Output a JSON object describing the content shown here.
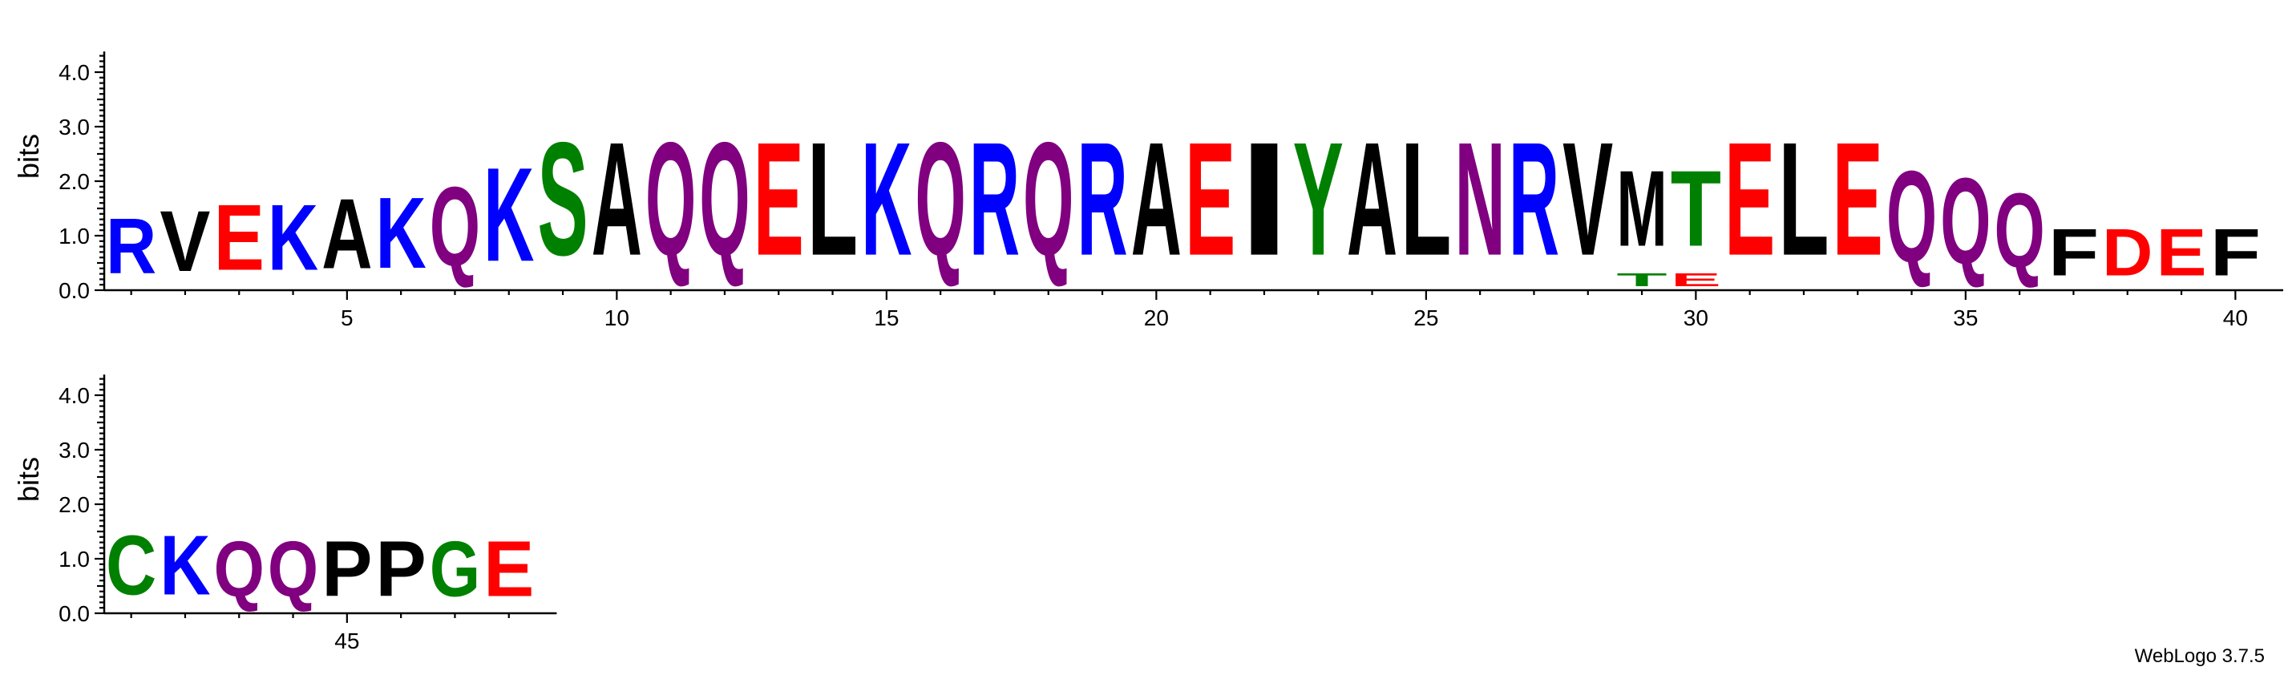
{
  "credit": "WebLogo 3.7.5",
  "colors": {
    "hydrophobic": "#000000",
    "polar": "#008000",
    "basic": "#0000ff",
    "acidic": "#ff0000",
    "amide": "#800080"
  },
  "chart_data": [
    {
      "type": "sequence-logo",
      "ylabel": "bits",
      "ylim": [
        0,
        4.32
      ],
      "yticks": [
        "0.0",
        "1.0",
        "2.0",
        "3.0",
        "4.0"
      ],
      "xlim": [
        0.5,
        40.5
      ],
      "xticks": [
        5,
        10,
        15,
        20,
        25,
        30,
        35,
        40
      ],
      "columns": [
        {
          "pos": 1,
          "stack": [
            {
              "letter": "R",
              "bits": 1.62
            }
          ]
        },
        {
          "pos": 2,
          "stack": [
            {
              "letter": "V",
              "bits": 1.78
            }
          ]
        },
        {
          "pos": 3,
          "stack": [
            {
              "letter": "E",
              "bits": 1.92
            }
          ]
        },
        {
          "pos": 4,
          "stack": [
            {
              "letter": "K",
              "bits": 1.92
            }
          ]
        },
        {
          "pos": 5,
          "stack": [
            {
              "letter": "A",
              "bits": 2.05
            }
          ]
        },
        {
          "pos": 6,
          "stack": [
            {
              "letter": "K",
              "bits": 2.08
            }
          ]
        },
        {
          "pos": 7,
          "stack": [
            {
              "letter": "Q",
              "bits": 2.32
            }
          ]
        },
        {
          "pos": 8,
          "stack": [
            {
              "letter": "K",
              "bits": 2.75
            }
          ]
        },
        {
          "pos": 9,
          "stack": [
            {
              "letter": "S",
              "bits": 3.32
            }
          ]
        },
        {
          "pos": 10,
          "stack": [
            {
              "letter": "A",
              "bits": 3.32
            }
          ]
        },
        {
          "pos": 11,
          "stack": [
            {
              "letter": "Q",
              "bits": 3.32
            }
          ]
        },
        {
          "pos": 12,
          "stack": [
            {
              "letter": "Q",
              "bits": 3.32
            }
          ]
        },
        {
          "pos": 13,
          "stack": [
            {
              "letter": "E",
              "bits": 3.32
            }
          ]
        },
        {
          "pos": 14,
          "stack": [
            {
              "letter": "L",
              "bits": 3.32
            }
          ]
        },
        {
          "pos": 15,
          "stack": [
            {
              "letter": "K",
              "bits": 3.32
            }
          ]
        },
        {
          "pos": 16,
          "stack": [
            {
              "letter": "Q",
              "bits": 3.32
            }
          ]
        },
        {
          "pos": 17,
          "stack": [
            {
              "letter": "R",
              "bits": 3.32
            }
          ]
        },
        {
          "pos": 18,
          "stack": [
            {
              "letter": "Q",
              "bits": 3.32
            }
          ]
        },
        {
          "pos": 19,
          "stack": [
            {
              "letter": "R",
              "bits": 3.32
            }
          ]
        },
        {
          "pos": 20,
          "stack": [
            {
              "letter": "A",
              "bits": 3.32
            }
          ]
        },
        {
          "pos": 21,
          "stack": [
            {
              "letter": "E",
              "bits": 3.32
            }
          ]
        },
        {
          "pos": 22,
          "stack": [
            {
              "letter": "I",
              "bits": 3.32
            }
          ]
        },
        {
          "pos": 23,
          "stack": [
            {
              "letter": "Y",
              "bits": 3.32
            }
          ]
        },
        {
          "pos": 24,
          "stack": [
            {
              "letter": "A",
              "bits": 3.32
            }
          ]
        },
        {
          "pos": 25,
          "stack": [
            {
              "letter": "L",
              "bits": 3.32
            }
          ]
        },
        {
          "pos": 26,
          "stack": [
            {
              "letter": "N",
              "bits": 3.32
            }
          ]
        },
        {
          "pos": 27,
          "stack": [
            {
              "letter": "R",
              "bits": 3.32
            }
          ]
        },
        {
          "pos": 28,
          "stack": [
            {
              "letter": "V",
              "bits": 3.32
            }
          ]
        },
        {
          "pos": 29,
          "stack": [
            {
              "letter": "T",
              "bits": 0.38
            },
            {
              "letter": "M",
              "bits": 2.22
            }
          ]
        },
        {
          "pos": 30,
          "stack": [
            {
              "letter": "E",
              "bits": 0.38
            },
            {
              "letter": "T",
              "bits": 2.22
            }
          ]
        },
        {
          "pos": 31,
          "stack": [
            {
              "letter": "E",
              "bits": 3.32
            }
          ]
        },
        {
          "pos": 32,
          "stack": [
            {
              "letter": "L",
              "bits": 3.32
            }
          ]
        },
        {
          "pos": 33,
          "stack": [
            {
              "letter": "E",
              "bits": 3.32
            }
          ]
        },
        {
          "pos": 34,
          "stack": [
            {
              "letter": "Q",
              "bits": 2.68
            }
          ]
        },
        {
          "pos": 35,
          "stack": [
            {
              "letter": "Q",
              "bits": 2.52
            }
          ]
        },
        {
          "pos": 36,
          "stack": [
            {
              "letter": "Q",
              "bits": 2.18
            }
          ]
        },
        {
          "pos": 37,
          "stack": [
            {
              "letter": "F",
              "bits": 1.38
            }
          ]
        },
        {
          "pos": 38,
          "stack": [
            {
              "letter": "D",
              "bits": 1.38
            }
          ]
        },
        {
          "pos": 39,
          "stack": [
            {
              "letter": "E",
              "bits": 1.38
            }
          ]
        },
        {
          "pos": 40,
          "stack": [
            {
              "letter": "F",
              "bits": 1.38
            }
          ]
        }
      ]
    },
    {
      "type": "sequence-logo",
      "ylabel": "bits",
      "ylim": [
        0,
        4.32
      ],
      "yticks": [
        "0.0",
        "1.0",
        "2.0",
        "3.0",
        "4.0"
      ],
      "xlim": [
        40.5,
        48.5
      ],
      "xticks": [
        45
      ],
      "columns": [
        {
          "pos": 41,
          "stack": [
            {
              "letter": "C",
              "bits": 1.75
            }
          ]
        },
        {
          "pos": 42,
          "stack": [
            {
              "letter": "K",
              "bits": 1.75
            }
          ]
        },
        {
          "pos": 43,
          "stack": [
            {
              "letter": "Q",
              "bits": 1.62
            }
          ]
        },
        {
          "pos": 44,
          "stack": [
            {
              "letter": "Q",
              "bits": 1.62
            }
          ]
        },
        {
          "pos": 45,
          "stack": [
            {
              "letter": "P",
              "bits": 1.62
            }
          ]
        },
        {
          "pos": 46,
          "stack": [
            {
              "letter": "P",
              "bits": 1.62
            }
          ]
        },
        {
          "pos": 47,
          "stack": [
            {
              "letter": "G",
              "bits": 1.62
            }
          ]
        },
        {
          "pos": 48,
          "stack": [
            {
              "letter": "E",
              "bits": 1.62
            }
          ]
        }
      ]
    }
  ]
}
